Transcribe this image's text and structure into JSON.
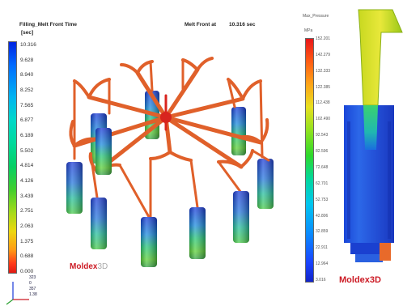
{
  "header": {
    "result_title": "Filling_Melt Front Time",
    "unit": "[sec]",
    "melt_front_label": "Melt Front at",
    "melt_front_value": "10.316 sec"
  },
  "legend_main": {
    "ticks": [
      "10.316",
      "9.628",
      "8.940",
      "8.252",
      "7.565",
      "6.877",
      "6.189",
      "5.502",
      "4.814",
      "4.126",
      "3.439",
      "2.751",
      "2.063",
      "1.375",
      "0.688",
      "0.000"
    ]
  },
  "legend_right": {
    "title": "Max_Pressure",
    "unit": "MPa",
    "ticks": [
      "152.201",
      "142.279",
      "132.333",
      "122.385",
      "112.438",
      "102.490",
      "92.543",
      "82.596",
      "72.648",
      "62.701",
      "52.753",
      "42.806",
      "32.859",
      "22.911",
      "12.964",
      "3.016"
    ]
  },
  "logos": {
    "left": "Moldex",
    "left_suffix": "3D",
    "right": "Moldex3D"
  },
  "axis_readout": [
    "323",
    "0",
    "357",
    "1.38"
  ],
  "colors": {
    "runner": "#e0602a",
    "logo": "#cc1a24",
    "part_blue": "#2a5fd8"
  }
}
